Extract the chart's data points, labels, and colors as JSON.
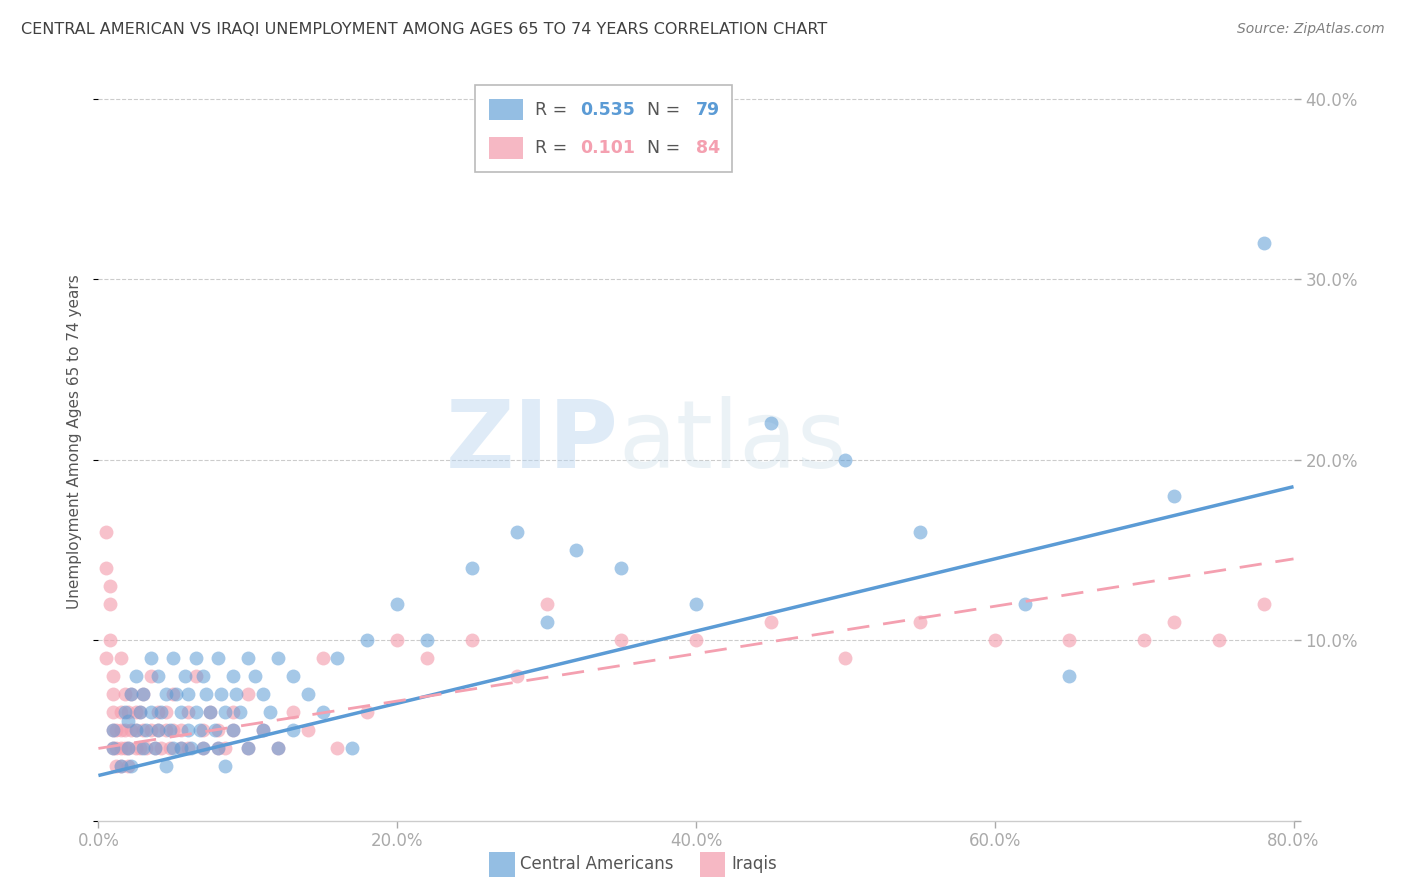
{
  "title": "CENTRAL AMERICAN VS IRAQI UNEMPLOYMENT AMONG AGES 65 TO 74 YEARS CORRELATION CHART",
  "source": "Source: ZipAtlas.com",
  "ylabel": "Unemployment Among Ages 65 to 74 years",
  "xlim": [
    0.0,
    0.8
  ],
  "ylim": [
    0.0,
    0.42
  ],
  "yticks": [
    0.0,
    0.1,
    0.2,
    0.3,
    0.4
  ],
  "ytick_labels": [
    "",
    "10.0%",
    "20.0%",
    "30.0%",
    "40.0%"
  ],
  "xticks": [
    0.0,
    0.2,
    0.4,
    0.6,
    0.8
  ],
  "xtick_labels": [
    "0.0%",
    "20.0%",
    "40.0%",
    "60.0%",
    "80.0%"
  ],
  "axis_color": "#5b9bd5",
  "grid_color": "#cccccc",
  "title_color": "#404040",
  "source_color": "#808080",
  "blue_color": "#5b9bd5",
  "pink_color": "#f4a0b0",
  "blue_R": 0.535,
  "blue_N": 79,
  "pink_R": 0.101,
  "pink_N": 84,
  "blue_scatter_x": [
    0.01,
    0.01,
    0.015,
    0.018,
    0.02,
    0.02,
    0.022,
    0.022,
    0.025,
    0.025,
    0.028,
    0.03,
    0.03,
    0.032,
    0.035,
    0.035,
    0.038,
    0.04,
    0.04,
    0.042,
    0.045,
    0.045,
    0.048,
    0.05,
    0.05,
    0.052,
    0.055,
    0.055,
    0.058,
    0.06,
    0.06,
    0.062,
    0.065,
    0.065,
    0.068,
    0.07,
    0.07,
    0.072,
    0.075,
    0.078,
    0.08,
    0.08,
    0.082,
    0.085,
    0.085,
    0.09,
    0.09,
    0.092,
    0.095,
    0.1,
    0.1,
    0.105,
    0.11,
    0.11,
    0.115,
    0.12,
    0.12,
    0.13,
    0.13,
    0.14,
    0.15,
    0.16,
    0.17,
    0.18,
    0.2,
    0.22,
    0.25,
    0.28,
    0.3,
    0.32,
    0.35,
    0.4,
    0.45,
    0.5,
    0.55,
    0.62,
    0.65,
    0.72,
    0.78
  ],
  "blue_scatter_y": [
    0.04,
    0.05,
    0.03,
    0.06,
    0.04,
    0.055,
    0.07,
    0.03,
    0.05,
    0.08,
    0.06,
    0.04,
    0.07,
    0.05,
    0.09,
    0.06,
    0.04,
    0.08,
    0.05,
    0.06,
    0.07,
    0.03,
    0.05,
    0.09,
    0.04,
    0.07,
    0.06,
    0.04,
    0.08,
    0.05,
    0.07,
    0.04,
    0.09,
    0.06,
    0.05,
    0.08,
    0.04,
    0.07,
    0.06,
    0.05,
    0.09,
    0.04,
    0.07,
    0.06,
    0.03,
    0.08,
    0.05,
    0.07,
    0.06,
    0.09,
    0.04,
    0.08,
    0.05,
    0.07,
    0.06,
    0.09,
    0.04,
    0.08,
    0.05,
    0.07,
    0.06,
    0.09,
    0.04,
    0.1,
    0.12,
    0.1,
    0.14,
    0.16,
    0.11,
    0.15,
    0.14,
    0.12,
    0.22,
    0.2,
    0.16,
    0.12,
    0.08,
    0.18,
    0.32
  ],
  "pink_scatter_x": [
    0.005,
    0.005,
    0.008,
    0.008,
    0.01,
    0.01,
    0.01,
    0.01,
    0.012,
    0.012,
    0.012,
    0.015,
    0.015,
    0.015,
    0.015,
    0.018,
    0.018,
    0.018,
    0.02,
    0.02,
    0.02,
    0.022,
    0.022,
    0.025,
    0.025,
    0.025,
    0.028,
    0.028,
    0.03,
    0.03,
    0.032,
    0.035,
    0.035,
    0.038,
    0.04,
    0.04,
    0.042,
    0.045,
    0.045,
    0.048,
    0.05,
    0.05,
    0.055,
    0.055,
    0.06,
    0.06,
    0.065,
    0.07,
    0.07,
    0.075,
    0.08,
    0.08,
    0.085,
    0.09,
    0.09,
    0.1,
    0.1,
    0.11,
    0.12,
    0.13,
    0.14,
    0.15,
    0.16,
    0.18,
    0.2,
    0.22,
    0.25,
    0.28,
    0.3,
    0.35,
    0.4,
    0.45,
    0.5,
    0.55,
    0.6,
    0.65,
    0.7,
    0.72,
    0.75,
    0.78,
    0.005,
    0.008,
    0.01,
    0.015
  ],
  "pink_scatter_y": [
    0.16,
    0.14,
    0.12,
    0.13,
    0.04,
    0.05,
    0.06,
    0.07,
    0.03,
    0.04,
    0.05,
    0.03,
    0.04,
    0.05,
    0.06,
    0.04,
    0.05,
    0.07,
    0.03,
    0.04,
    0.06,
    0.05,
    0.07,
    0.04,
    0.05,
    0.06,
    0.04,
    0.06,
    0.05,
    0.07,
    0.04,
    0.08,
    0.05,
    0.04,
    0.06,
    0.05,
    0.04,
    0.06,
    0.05,
    0.04,
    0.05,
    0.07,
    0.05,
    0.04,
    0.06,
    0.04,
    0.08,
    0.05,
    0.04,
    0.06,
    0.04,
    0.05,
    0.04,
    0.06,
    0.05,
    0.07,
    0.04,
    0.05,
    0.04,
    0.06,
    0.05,
    0.09,
    0.04,
    0.06,
    0.1,
    0.09,
    0.1,
    0.08,
    0.12,
    0.1,
    0.1,
    0.11,
    0.09,
    0.11,
    0.1,
    0.1,
    0.1,
    0.11,
    0.1,
    0.12,
    0.09,
    0.1,
    0.08,
    0.09
  ],
  "blue_line_x0": 0.0,
  "blue_line_x1": 0.8,
  "blue_line_y0": 0.025,
  "blue_line_y1": 0.185,
  "pink_line_x0": 0.0,
  "pink_line_x1": 0.8,
  "pink_line_y0": 0.04,
  "pink_line_y1": 0.145,
  "watermark_part1": "ZIP",
  "watermark_part2": "atlas"
}
